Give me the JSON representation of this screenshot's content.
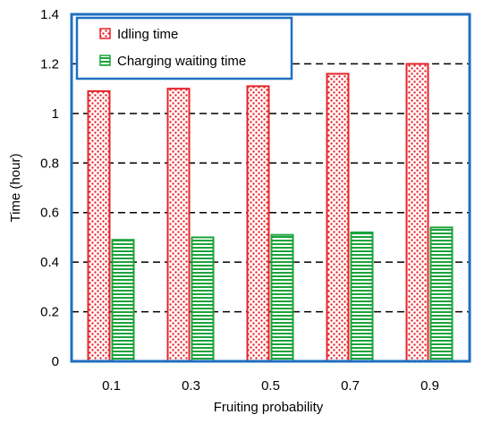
{
  "chart_data": {
    "type": "bar",
    "xlabel": "Fruiting probability",
    "ylabel": "Time (hour)",
    "categories": [
      "0.1",
      "0.3",
      "0.5",
      "0.7",
      "0.9"
    ],
    "ylim": [
      0,
      1.4
    ],
    "yticks": [
      "0",
      "0.2",
      "0.4",
      "0.6",
      "0.8",
      "1",
      "1.2",
      "1.4"
    ],
    "grid": "horizontal dashed",
    "legend_position": "top-left",
    "series": [
      {
        "name": "Idling time",
        "values": [
          1.09,
          1.1,
          1.11,
          1.16,
          1.2
        ],
        "color": "#e8242a",
        "pattern": "red dots"
      },
      {
        "name": "Charging waiting time",
        "values": [
          0.49,
          0.5,
          0.51,
          0.52,
          0.54
        ],
        "color": "#1aa33a",
        "pattern": "green horizontal stripes"
      }
    ],
    "frame_color": "#1f6fc1"
  }
}
